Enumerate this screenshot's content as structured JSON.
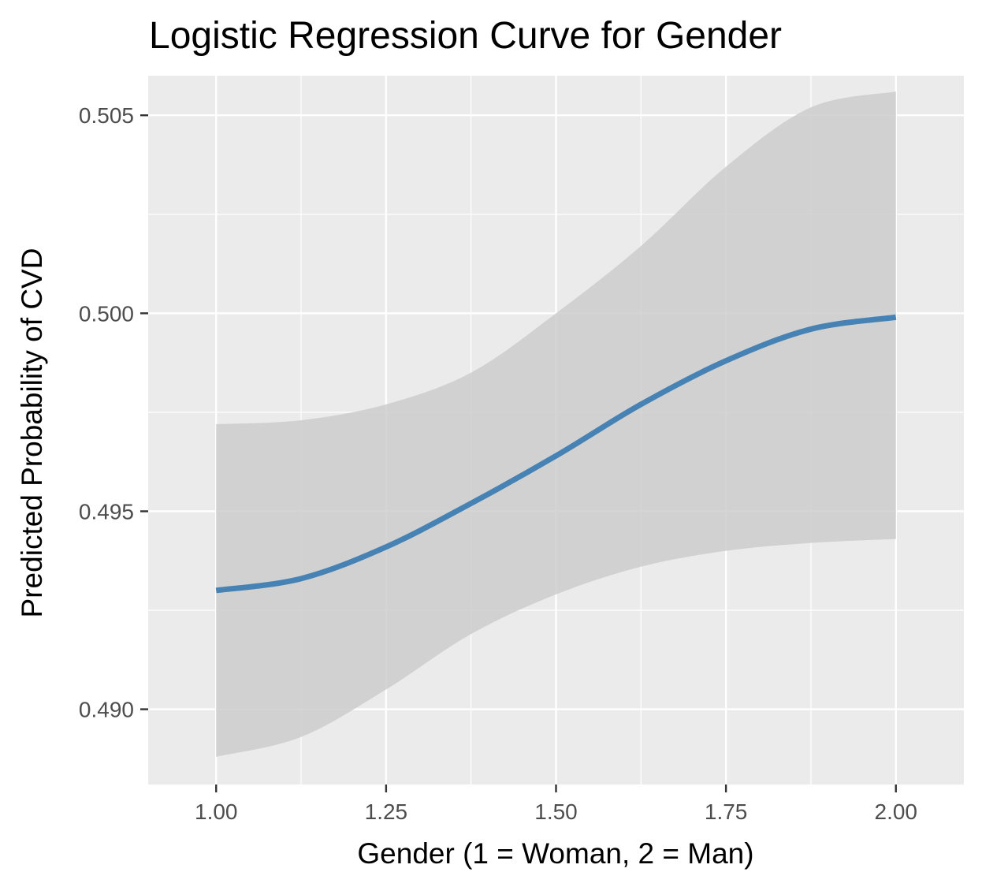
{
  "chart_data": {
    "type": "line",
    "title": "Logistic Regression Curve for Gender",
    "xlabel": "Gender (1 = Woman, 2 = Man)",
    "ylabel": "Predicted Probability of CVD",
    "xlim": [
      0.9,
      2.1
    ],
    "ylim": [
      0.4881,
      0.506
    ],
    "x_ticks": [
      1.0,
      1.25,
      1.5,
      1.75,
      2.0
    ],
    "x_tick_labels": [
      "1.00",
      "1.25",
      "1.50",
      "1.75",
      "2.00"
    ],
    "y_ticks": [
      0.49,
      0.495,
      0.5,
      0.505
    ],
    "y_tick_labels": [
      "0.490",
      "0.495",
      "0.500",
      "0.505"
    ],
    "grid": true,
    "legend": "none",
    "colors": {
      "line": "#4682b4",
      "ribbon": "#cccccc",
      "panel": "#ebebeb",
      "grid": "#ffffff"
    },
    "series": [
      {
        "x": [
          1.0,
          1.125,
          1.25,
          1.375,
          1.5,
          1.625,
          1.75,
          1.875,
          2.0
        ],
        "y": [
          0.493,
          0.4933,
          0.4941,
          0.4952,
          0.4964,
          0.4977,
          0.4988,
          0.4996,
          0.4999
        ],
        "lower": [
          0.4888,
          0.4893,
          0.4905,
          0.4919,
          0.4929,
          0.4936,
          0.494,
          0.4942,
          0.4943
        ],
        "upper": [
          0.4972,
          0.4973,
          0.4977,
          0.4985,
          0.5,
          0.5017,
          0.5037,
          0.5052,
          0.5056
        ]
      }
    ]
  }
}
